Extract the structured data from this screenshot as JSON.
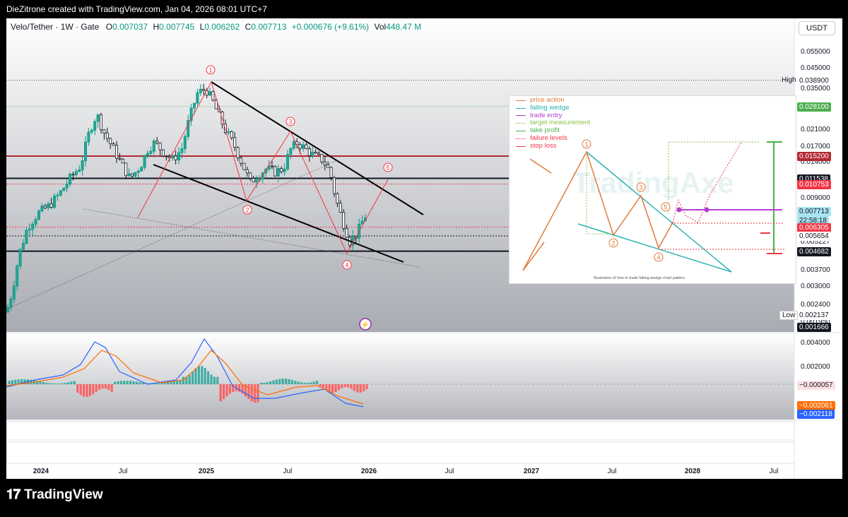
{
  "header": {
    "credit": "DieZitrone created with TradingView.com, Jan 04, 2026 08:01 UTC+7"
  },
  "legend": {
    "symbol": "Velo/Tether · 1W · Gate",
    "o_label": "O",
    "o": "0.007037",
    "h_label": "H",
    "h": "0.007745",
    "l_label": "L",
    "l": "0.006262",
    "c_label": "C",
    "c": "0.007713",
    "change": "+0.000676 (+9.61%)",
    "vol_label": "Vol",
    "vol": "448.47 M"
  },
  "currency": "USDT",
  "price_axis": [
    "0.055000",
    "0.045000",
    "0.035000",
    "0.021000",
    "0.017000",
    "0.014000",
    "0.009000",
    "0.005227",
    "0.003700",
    "0.003000",
    "0.002400",
    "0.001950"
  ],
  "price_tags": [
    {
      "text": "0.038900",
      "bg": "#ffffff",
      "fg": "#131722"
    },
    {
      "text": "0.028100",
      "bg": "#4caf50",
      "fg": "#ffffff"
    },
    {
      "text": "0.015200",
      "bg": "#b22833",
      "fg": "#ffffff"
    },
    {
      "text": "0.011538",
      "bg": "#131722",
      "fg": "#ffffff"
    },
    {
      "text": "0.010753",
      "bg": "#f23645",
      "fg": "#ffffff"
    },
    {
      "text": "0.007713",
      "bg": "#a9e3f2",
      "fg": "#131722"
    },
    {
      "text": "22:58:18",
      "bg": "#a9e3f2",
      "fg": "#131722"
    },
    {
      "text": "0.006305",
      "bg": "#f23645",
      "fg": "#ffffff"
    },
    {
      "text": "0.005654",
      "bg": "#ffffff",
      "fg": "#131722"
    },
    {
      "text": "0.004682",
      "bg": "#131722",
      "fg": "#ffffff"
    },
    {
      "text": "0.002137",
      "bg": "#ffffff",
      "fg": "#131722"
    },
    {
      "text": "0.001666",
      "bg": "#131722",
      "fg": "#ffffff"
    }
  ],
  "high_label": "High",
  "low_label": "Low",
  "macd_axis": [
    "0.004000",
    "0.002000"
  ],
  "macd_tags": [
    {
      "text": "−0.000057",
      "bg": "#fde2e4",
      "fg": "#131722"
    },
    {
      "text": "−0.002061",
      "bg": "#ff6d00",
      "fg": "#ffffff"
    },
    {
      "text": "−0.002118",
      "bg": "#2962ff",
      "fg": "#ffffff"
    }
  ],
  "time_axis": [
    "2024",
    "Jul",
    "2025",
    "Jul",
    "2026",
    "Jul",
    "2027",
    "Jul",
    "2028",
    "Jul"
  ],
  "wave_labels": [
    "1",
    "2",
    "3",
    "4",
    "5"
  ],
  "inset": {
    "legend": [
      {
        "label": "price action",
        "color": "#e07a3c"
      },
      {
        "label": "falling wedge",
        "color": "#2ab3b0"
      },
      {
        "label": "trade entry",
        "color": "#b03fcf"
      },
      {
        "label": "target measurement",
        "color": "#8bc34a"
      },
      {
        "label": "take profit",
        "color": "#4caf50"
      },
      {
        "label": "failure levels",
        "color": "#f23645"
      },
      {
        "label": "stop loss",
        "color": "#f23645"
      }
    ],
    "caption": "Illustration of how to trade falling wedge chart pattern",
    "watermark": "TradingAxe",
    "wave_labels": [
      "1",
      "2",
      "3",
      "4",
      "5"
    ]
  },
  "footer": {
    "brand": "TradingView"
  },
  "chart_data": {
    "type": "candlestick",
    "symbol": "Velo/Tether",
    "interval": "1W",
    "y_scale": "log",
    "ylim": [
      0.00166,
      0.06
    ],
    "x_ticks": [
      "2024",
      "Jul",
      "2025",
      "Jul",
      "2026",
      "Jul",
      "2027",
      "Jul",
      "2028",
      "Jul"
    ],
    "swing_points": [
      {
        "label": "1",
        "value": 0.0389
      },
      {
        "label": "2",
        "value": 0.0107
      },
      {
        "label": "3",
        "value": 0.0214
      },
      {
        "label": "4",
        "value": 0.0052
      },
      {
        "label": "5",
        "value": 0.0107
      }
    ],
    "horizontal_levels": [
      {
        "value": 0.0389,
        "label": "High"
      },
      {
        "value": 0.0281
      },
      {
        "value": 0.0152
      },
      {
        "value": 0.011538
      },
      {
        "value": 0.010753
      },
      {
        "value": 0.006305
      },
      {
        "value": 0.005654
      },
      {
        "value": 0.004682
      },
      {
        "value": 0.002137,
        "label": "Low"
      }
    ],
    "last_price": 0.007713,
    "macd": {
      "macd": -0.002118,
      "signal": -0.002061,
      "histogram": -5.7e-05
    }
  }
}
